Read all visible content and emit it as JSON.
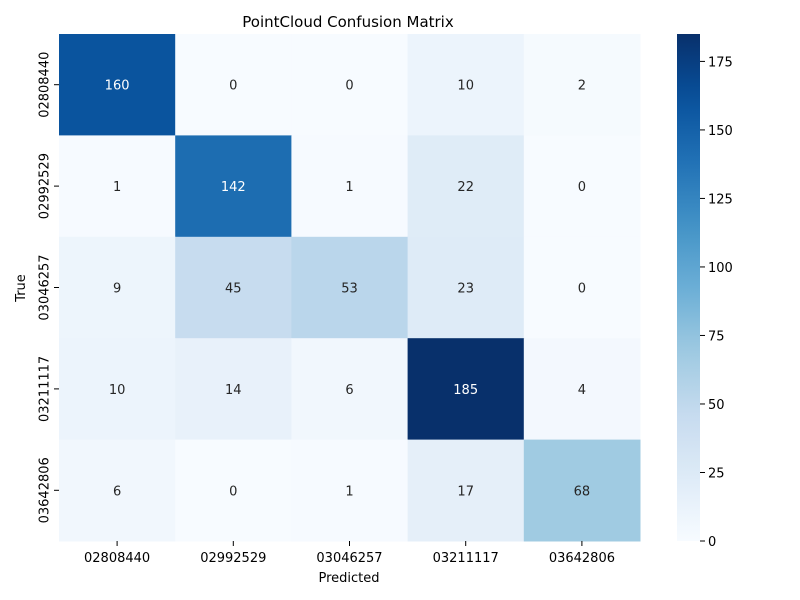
{
  "chart_data": {
    "type": "heatmap",
    "title": "PointCloud Confusion Matrix",
    "xlabel": "Predicted",
    "ylabel": "True",
    "x_categories": [
      "02808440",
      "02992529",
      "03046257",
      "03211117",
      "03642806"
    ],
    "y_categories": [
      "02808440",
      "02992529",
      "03046257",
      "03211117",
      "03642806"
    ],
    "matrix": [
      [
        160,
        0,
        0,
        10,
        2
      ],
      [
        1,
        142,
        1,
        22,
        0
      ],
      [
        9,
        45,
        53,
        23,
        0
      ],
      [
        10,
        14,
        6,
        185,
        4
      ],
      [
        6,
        0,
        1,
        17,
        68
      ]
    ],
    "colormap": "Blues",
    "colorbar": {
      "range": [
        0,
        185
      ],
      "ticks": [
        "0",
        "25",
        "50",
        "75",
        "100",
        "125",
        "150",
        "175"
      ]
    }
  }
}
